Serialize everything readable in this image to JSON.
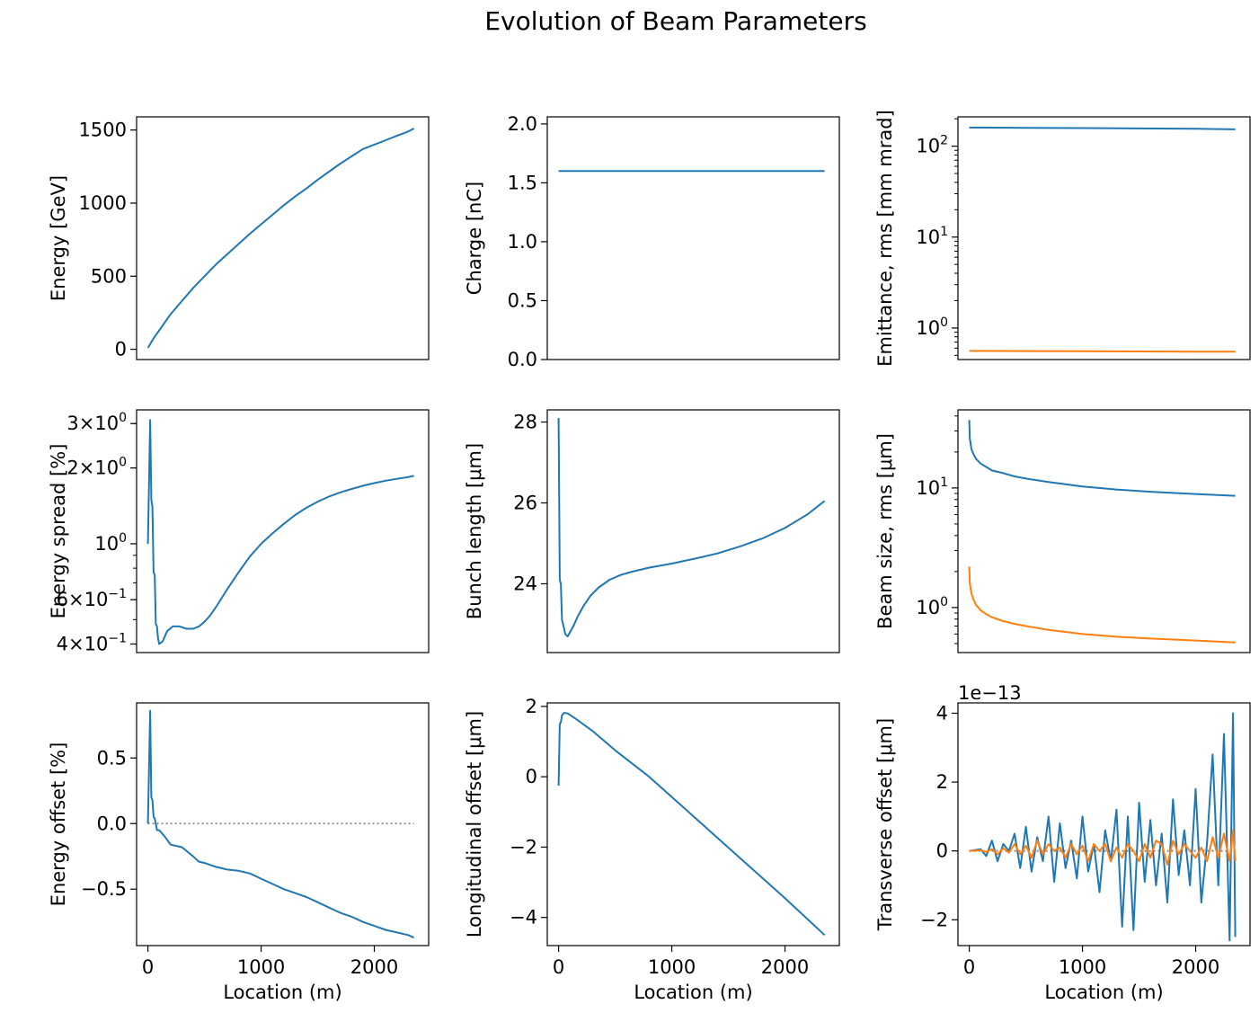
{
  "figure": {
    "title": "Evolution of Beam Parameters"
  },
  "colors": {
    "blue": "#1f77b4",
    "orange": "#ff7f0e",
    "grey": "#808080"
  },
  "chart_data": [
    {
      "type": "line",
      "ylabel": "Energy [GeV]",
      "xlabel": "",
      "xlim": [
        -100,
        2480
      ],
      "ylim": [
        -70,
        1590
      ],
      "scale": "linear",
      "xticks": [],
      "yticks": [
        {
          "v": 0,
          "t": "0"
        },
        {
          "v": 500,
          "t": "500"
        },
        {
          "v": 1000,
          "t": "1000"
        },
        {
          "v": 1500,
          "t": "1500"
        }
      ],
      "series": [
        {
          "color": "blue",
          "x": [
            0,
            50,
            100,
            200,
            300,
            400,
            500,
            600,
            700,
            800,
            900,
            1000,
            1100,
            1200,
            1300,
            1400,
            1500,
            1600,
            1700,
            1800,
            1900,
            2000,
            2100,
            2200,
            2300,
            2350
          ],
          "y": [
            10,
            75,
            130,
            240,
            330,
            420,
            500,
            580,
            650,
            720,
            790,
            855,
            920,
            985,
            1045,
            1100,
            1160,
            1215,
            1270,
            1320,
            1370,
            1400,
            1430,
            1460,
            1490,
            1510
          ]
        }
      ]
    },
    {
      "type": "line",
      "ylabel": "Charge [nC]",
      "xlabel": "",
      "xlim": [
        -100,
        2480
      ],
      "ylim": [
        0,
        2.06
      ],
      "scale": "linear",
      "xticks": [],
      "yticks": [
        {
          "v": 0,
          "t": "0.0"
        },
        {
          "v": 0.5,
          "t": "0.5"
        },
        {
          "v": 1.0,
          "t": "1.0"
        },
        {
          "v": 1.5,
          "t": "1.5"
        },
        {
          "v": 2.0,
          "t": "2.0"
        }
      ],
      "series": [
        {
          "color": "blue",
          "x": [
            0,
            2350
          ],
          "y": [
            1.6,
            1.6
          ]
        }
      ]
    },
    {
      "type": "line",
      "ylabel": "Emittance, rms [mm mrad]",
      "xlabel": "",
      "xlim": [
        -100,
        2480
      ],
      "ylim": [
        0.45,
        210
      ],
      "scale": "log",
      "xticks": [],
      "yticks": [
        {
          "v": 1,
          "t": "10",
          "sup": "0"
        },
        {
          "v": 10,
          "t": "10",
          "sup": "1"
        },
        {
          "v": 100,
          "t": "10",
          "sup": "2"
        }
      ],
      "series": [
        {
          "color": "blue",
          "x": [
            0,
            1000,
            2000,
            2350
          ],
          "y": [
            160,
            158,
            155,
            153
          ]
        },
        {
          "color": "orange",
          "x": [
            0,
            1000,
            2000,
            2350
          ],
          "y": [
            0.56,
            0.555,
            0.55,
            0.55
          ]
        }
      ]
    },
    {
      "type": "line",
      "ylabel": "Energy spread [%]",
      "xlabel": "",
      "xlim": [
        -100,
        2480
      ],
      "ylim": [
        0.37,
        3.4
      ],
      "scale": "log",
      "xticks": [],
      "yticks": [
        {
          "v": 0.4,
          "t": "4×10",
          "sup": "−1"
        },
        {
          "v": 0.6,
          "t": "6×10",
          "sup": "−1"
        },
        {
          "v": 1.0,
          "t": "10",
          "sup": "0"
        },
        {
          "v": 2.0,
          "t": "2×10",
          "sup": "0"
        },
        {
          "v": 3.0,
          "t": "3×10",
          "sup": "0"
        }
      ],
      "series": [
        {
          "color": "blue",
          "x": [
            0,
            20,
            30,
            40,
            50,
            60,
            70,
            80,
            90,
            100,
            130,
            170,
            220,
            280,
            340,
            400,
            450,
            500,
            550,
            600,
            700,
            800,
            900,
            1000,
            1100,
            1200,
            1300,
            1400,
            1500,
            1600,
            1700,
            1800,
            1900,
            2000,
            2100,
            2200,
            2300,
            2350
          ],
          "y": [
            1.0,
            3.1,
            1.5,
            1.4,
            0.77,
            0.75,
            0.48,
            0.47,
            0.42,
            0.4,
            0.41,
            0.45,
            0.47,
            0.47,
            0.46,
            0.46,
            0.47,
            0.49,
            0.52,
            0.56,
            0.66,
            0.77,
            0.89,
            1.0,
            1.1,
            1.2,
            1.3,
            1.39,
            1.47,
            1.54,
            1.6,
            1.65,
            1.7,
            1.74,
            1.78,
            1.81,
            1.84,
            1.86
          ]
        }
      ]
    },
    {
      "type": "line",
      "ylabel": "Bunch length [μm]",
      "xlabel": "",
      "xlim": [
        -100,
        2480
      ],
      "ylim": [
        22.3,
        28.3
      ],
      "scale": "linear",
      "xticks": [],
      "yticks": [
        {
          "v": 24,
          "t": "24"
        },
        {
          "v": 26,
          "t": "26"
        },
        {
          "v": 28,
          "t": "28"
        }
      ],
      "series": [
        {
          "color": "blue",
          "x": [
            0,
            10,
            20,
            30,
            40,
            60,
            80,
            100,
            130,
            170,
            220,
            280,
            350,
            450,
            550,
            650,
            800,
            1000,
            1200,
            1400,
            1600,
            1800,
            2000,
            2200,
            2350
          ],
          "y": [
            28.1,
            24.1,
            24.0,
            23.1,
            23.0,
            22.75,
            22.7,
            22.8,
            22.95,
            23.2,
            23.45,
            23.7,
            23.9,
            24.1,
            24.22,
            24.3,
            24.4,
            24.5,
            24.62,
            24.75,
            24.92,
            25.12,
            25.38,
            25.72,
            26.05
          ]
        }
      ]
    },
    {
      "type": "line",
      "ylabel": "Beam size, rms [μm]",
      "xlabel": "",
      "xlim": [
        -100,
        2480
      ],
      "ylim": [
        0.42,
        45
      ],
      "scale": "log",
      "xticks": [],
      "yticks": [
        {
          "v": 1,
          "t": "10",
          "sup": "0"
        },
        {
          "v": 10,
          "t": "10",
          "sup": "1"
        }
      ],
      "series": [
        {
          "color": "blue",
          "x": [
            0,
            5,
            20,
            40,
            60,
            100,
            150,
            200,
            300,
            400,
            500,
            700,
            1000,
            1300,
            1600,
            2000,
            2350
          ],
          "y": [
            37,
            26,
            21,
            19,
            17.5,
            16,
            15,
            14,
            13.3,
            12.5,
            12,
            11.2,
            10.3,
            9.7,
            9.3,
            8.9,
            8.6
          ]
        },
        {
          "color": "orange",
          "x": [
            0,
            5,
            20,
            40,
            60,
            100,
            150,
            200,
            300,
            400,
            500,
            700,
            1000,
            1300,
            1600,
            2000,
            2350
          ],
          "y": [
            2.2,
            1.6,
            1.3,
            1.15,
            1.05,
            0.95,
            0.88,
            0.83,
            0.77,
            0.73,
            0.7,
            0.65,
            0.6,
            0.57,
            0.55,
            0.53,
            0.51
          ]
        }
      ]
    },
    {
      "type": "line",
      "ylabel": "Energy offset [%]",
      "xlabel": "Location (m)",
      "xlim": [
        -100,
        2480
      ],
      "ylim": [
        -0.93,
        0.92
      ],
      "scale": "linear",
      "xticks": [
        {
          "v": 0,
          "t": "0"
        },
        {
          "v": 1000,
          "t": "1000"
        },
        {
          "v": 2000,
          "t": "2000"
        }
      ],
      "yticks": [
        {
          "v": -0.5,
          "t": "−0.5"
        },
        {
          "v": 0.0,
          "t": "0.0"
        },
        {
          "v": 0.5,
          "t": "0.5"
        }
      ],
      "refline": {
        "x": [
          0,
          2350
        ],
        "y": 0
      },
      "series": [
        {
          "color": "blue",
          "x": [
            0,
            20,
            30,
            40,
            50,
            60,
            80,
            100,
            150,
            200,
            250,
            300,
            400,
            450,
            500,
            600,
            700,
            800,
            900,
            1000,
            1100,
            1200,
            1300,
            1400,
            1500,
            1600,
            1700,
            1800,
            1900,
            2000,
            2100,
            2200,
            2300,
            2350
          ],
          "y": [
            0.0,
            0.86,
            0.2,
            0.18,
            0.05,
            0.04,
            -0.05,
            -0.05,
            -0.1,
            -0.16,
            -0.17,
            -0.18,
            -0.25,
            -0.29,
            -0.3,
            -0.33,
            -0.35,
            -0.36,
            -0.38,
            -0.42,
            -0.46,
            -0.5,
            -0.53,
            -0.56,
            -0.6,
            -0.64,
            -0.68,
            -0.71,
            -0.75,
            -0.78,
            -0.81,
            -0.83,
            -0.85,
            -0.87
          ]
        }
      ]
    },
    {
      "type": "line",
      "ylabel": "Longitudinal offset [μm]",
      "xlabel": "Location (m)",
      "xlim": [
        -100,
        2480
      ],
      "ylim": [
        -4.8,
        2.1
      ],
      "scale": "linear",
      "xticks": [
        {
          "v": 0,
          "t": "0"
        },
        {
          "v": 1000,
          "t": "1000"
        },
        {
          "v": 2000,
          "t": "2000"
        }
      ],
      "yticks": [
        {
          "v": -4,
          "t": "−4"
        },
        {
          "v": -2,
          "t": "−2"
        },
        {
          "v": 0,
          "t": "0"
        },
        {
          "v": 2,
          "t": "2"
        }
      ],
      "series": [
        {
          "color": "blue",
          "x": [
            0,
            10,
            20,
            30,
            50,
            80,
            150,
            300,
            500,
            800,
            1200,
            1600,
            2000,
            2350
          ],
          "y": [
            -0.25,
            1.5,
            1.55,
            1.75,
            1.82,
            1.8,
            1.65,
            1.3,
            0.75,
            0.0,
            -1.15,
            -2.3,
            -3.45,
            -4.5
          ]
        }
      ]
    },
    {
      "type": "line",
      "ylabel": "Transverse offset [μm]",
      "xlabel": "Location (m)",
      "offset_text": "1e−13",
      "xlim": [
        -100,
        2480
      ],
      "ylim": [
        -2.75,
        4.3
      ],
      "scale": "linear",
      "xticks": [
        {
          "v": 0,
          "t": "0"
        },
        {
          "v": 1000,
          "t": "1000"
        },
        {
          "v": 2000,
          "t": "2000"
        }
      ],
      "yticks": [
        {
          "v": -2,
          "t": "−2"
        },
        {
          "v": 0,
          "t": "0"
        },
        {
          "v": 2,
          "t": "2"
        },
        {
          "v": 4,
          "t": "4"
        }
      ],
      "refline": {
        "x": [
          0,
          2350
        ],
        "y": 0
      },
      "series": [
        {
          "color": "blue",
          "x": [
            0,
            100,
            150,
            200,
            250,
            300,
            350,
            400,
            450,
            500,
            550,
            600,
            650,
            700,
            750,
            800,
            850,
            900,
            950,
            1000,
            1050,
            1100,
            1150,
            1200,
            1250,
            1300,
            1350,
            1400,
            1450,
            1500,
            1550,
            1600,
            1650,
            1700,
            1750,
            1800,
            1850,
            1900,
            1950,
            2000,
            2050,
            2100,
            2150,
            2200,
            2250,
            2300,
            2330,
            2350
          ],
          "y": [
            0,
            0.05,
            -0.15,
            0.3,
            -0.3,
            0.2,
            0.0,
            0.5,
            -0.5,
            0.7,
            -0.6,
            0.4,
            -0.3,
            1.0,
            -0.9,
            0.8,
            -0.5,
            0.3,
            -0.8,
            1.0,
            -0.6,
            0.2,
            -1.2,
            0.6,
            -0.3,
            1.2,
            -2.2,
            1.0,
            -2.3,
            1.4,
            -0.9,
            0.9,
            -1.0,
            0.5,
            -1.5,
            1.5,
            -0.7,
            0.6,
            -1.0,
            1.8,
            -1.5,
            0.2,
            2.8,
            -1.0,
            3.4,
            -2.6,
            4.0,
            -2.5
          ]
        },
        {
          "color": "orange",
          "x": [
            0,
            100,
            150,
            200,
            250,
            300,
            350,
            400,
            450,
            500,
            550,
            600,
            650,
            700,
            750,
            800,
            850,
            900,
            950,
            1000,
            1050,
            1100,
            1150,
            1200,
            1250,
            1300,
            1350,
            1400,
            1450,
            1500,
            1550,
            1600,
            1650,
            1700,
            1750,
            1800,
            1850,
            1900,
            1950,
            2000,
            2050,
            2100,
            2150,
            2200,
            2250,
            2300,
            2330,
            2350
          ],
          "y": [
            0,
            0.02,
            -0.03,
            0.05,
            -0.1,
            0.08,
            -0.05,
            0.2,
            -0.1,
            0.15,
            -0.2,
            0.3,
            -0.1,
            0.2,
            0.0,
            0.1,
            -0.2,
            0.2,
            -0.1,
            0.15,
            -0.3,
            0.2,
            0.0,
            0.2,
            -0.3,
            0.1,
            -0.2,
            0.2,
            0.0,
            -0.3,
            0.2,
            -0.2,
            0.3,
            0.2,
            -0.4,
            0.3,
            -0.1,
            0.2,
            0.0,
            -0.2,
            0.1,
            -0.3,
            0.4,
            -0.2,
            0.5,
            -0.3,
            0.6,
            -0.3
          ]
        }
      ]
    }
  ]
}
